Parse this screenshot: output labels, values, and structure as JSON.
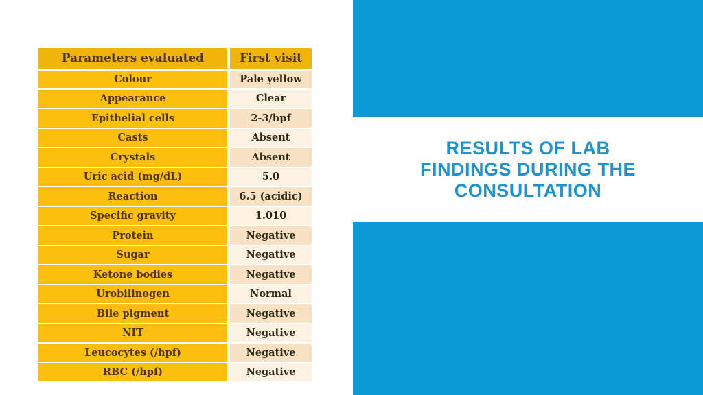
{
  "slide": {
    "title_lines": [
      "RESULTS OF LAB",
      "FINDINGS DURING THE",
      "CONSULTATION"
    ],
    "colors": {
      "accent_blue": "#0e9ad6",
      "title_blue": "#1e93d2",
      "table_header_gold": "#f1b40b",
      "table_param_gold": "#fcbf0d",
      "value_row_dark_cream": "#f8e2c3",
      "value_row_light_cream": "#fcf1e2"
    }
  },
  "table": {
    "headers": [
      "Parameters evaluated",
      "First visit"
    ],
    "rows": [
      {
        "parameter": "Colour",
        "first_visit": "Pale yellow"
      },
      {
        "parameter": "Appearance",
        "first_visit": "Clear"
      },
      {
        "parameter": "Epithelial cells",
        "first_visit": "2-3/hpf"
      },
      {
        "parameter": "Casts",
        "first_visit": "Absent"
      },
      {
        "parameter": "Crystals",
        "first_visit": "Absent"
      },
      {
        "parameter": "Uric acid (mg/dL)",
        "first_visit": "5.0"
      },
      {
        "parameter": "Reaction",
        "first_visit": "6.5 (acidic)"
      },
      {
        "parameter": "Specific gravity",
        "first_visit": "1.010"
      },
      {
        "parameter": "Protein",
        "first_visit": "Negative"
      },
      {
        "parameter": "Sugar",
        "first_visit": "Negative"
      },
      {
        "parameter": "Ketone bodies",
        "first_visit": "Negative"
      },
      {
        "parameter": "Urobilinogen",
        "first_visit": "Normal"
      },
      {
        "parameter": "Bile pigment",
        "first_visit": "Negative"
      },
      {
        "parameter": "NIT",
        "first_visit": "Negative"
      },
      {
        "parameter": "Leucocytes (/hpf)",
        "first_visit": "Negative"
      },
      {
        "parameter": "RBC (/hpf)",
        "first_visit": "Negative"
      }
    ]
  }
}
